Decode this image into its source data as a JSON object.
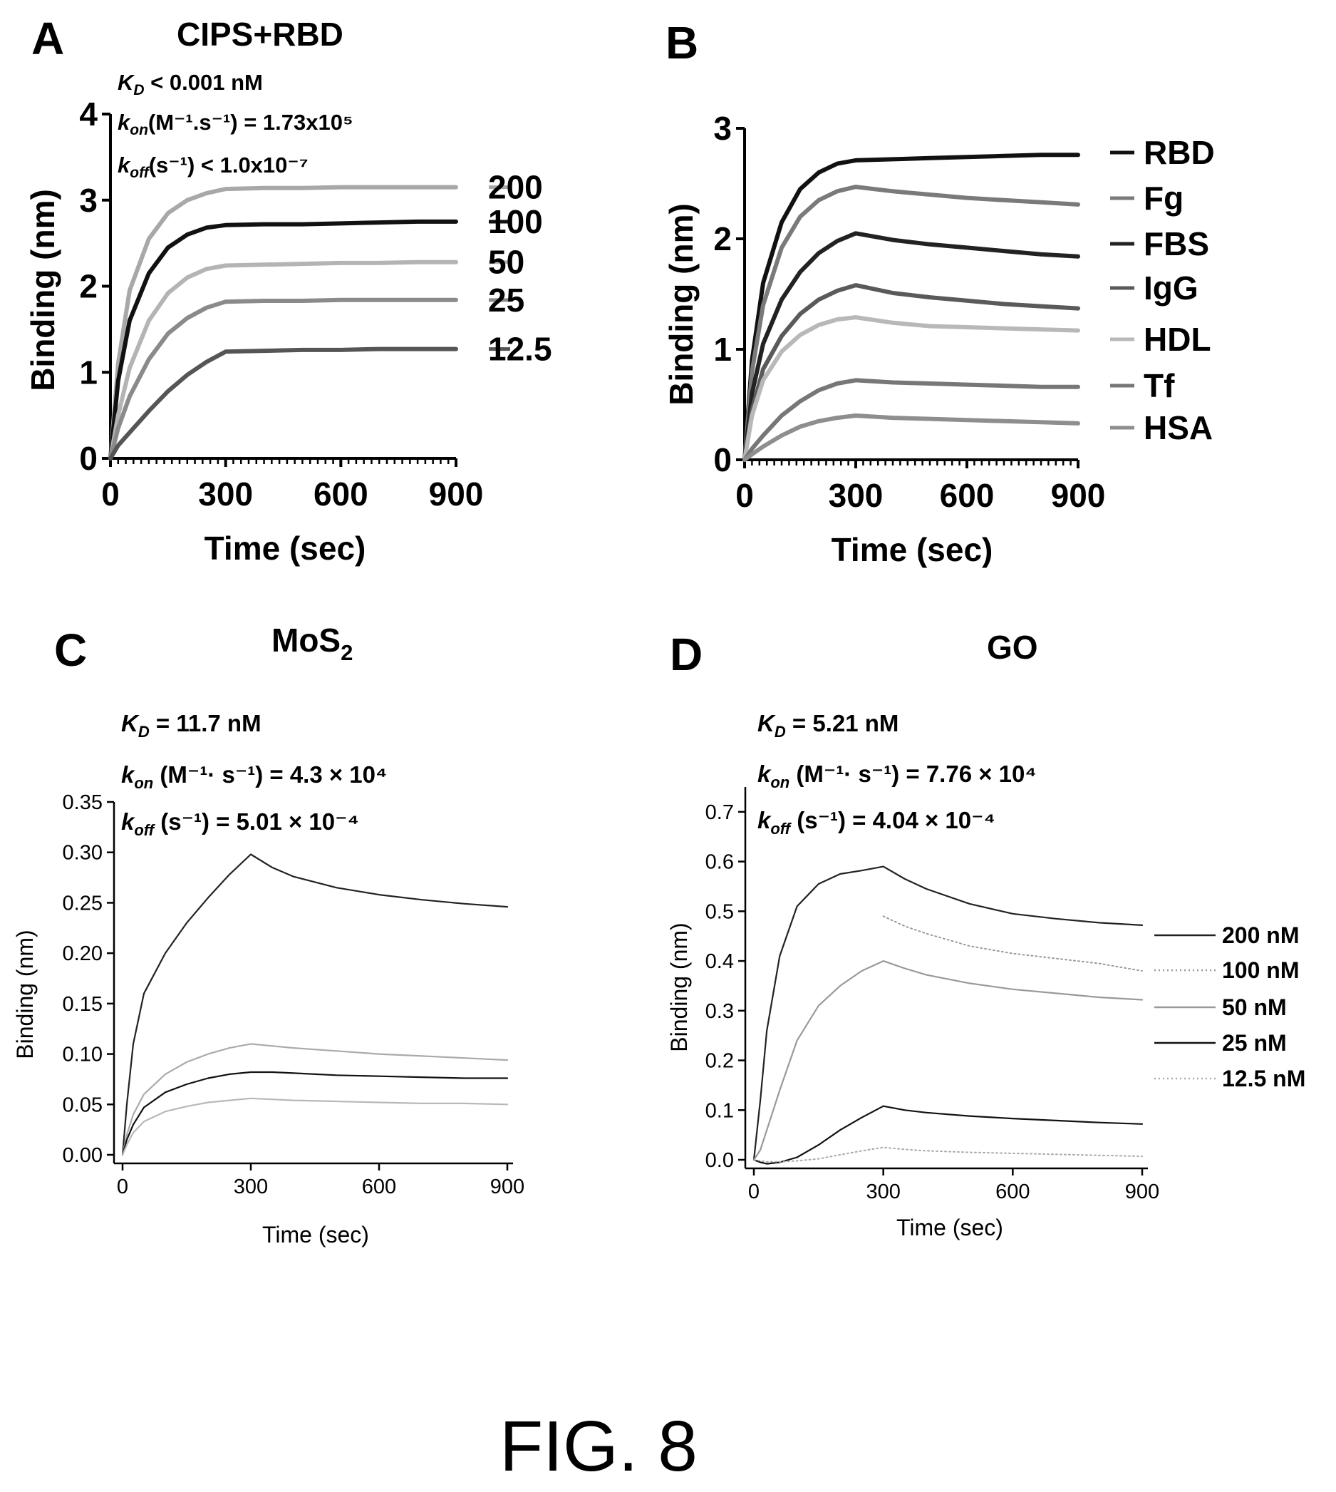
{
  "figure_label": "FIG. 8",
  "chart_data": [
    {
      "panel": "A",
      "type": "line",
      "title": "CIPS+RBD",
      "xlabel": "Time (sec)",
      "ylabel": "Binding (nm)",
      "xlim": [
        0,
        900
      ],
      "ylim": [
        0,
        4
      ],
      "xticks": [
        0,
        300,
        600,
        900
      ],
      "yticks": [
        0,
        1,
        2,
        3,
        4
      ],
      "legend_placement": "right",
      "annotations": {
        "kd": {
          "sym": "K",
          "sub": "D",
          "text": " < 0.001 nM"
        },
        "kon": {
          "sym": "k",
          "sub": "on",
          "text": "(M⁻¹.s⁻¹) = 1.73x10⁵"
        },
        "koff": {
          "sym": "k",
          "sub": "off",
          "text": "(s⁻¹) < 1.0x10⁻⁷"
        }
      },
      "series": [
        {
          "name": "200",
          "color": "#a8a8a8",
          "x": [
            0,
            20,
            50,
            100,
            150,
            200,
            250,
            300,
            400,
            500,
            600,
            700,
            800,
            900
          ],
          "y": [
            0,
            1.1,
            1.95,
            2.55,
            2.85,
            3.0,
            3.08,
            3.13,
            3.14,
            3.14,
            3.15,
            3.15,
            3.15,
            3.15
          ]
        },
        {
          "name": "100",
          "color": "#111111",
          "x": [
            0,
            20,
            50,
            100,
            150,
            200,
            250,
            300,
            400,
            500,
            600,
            700,
            800,
            900
          ],
          "y": [
            0,
            0.9,
            1.6,
            2.15,
            2.45,
            2.6,
            2.68,
            2.71,
            2.72,
            2.72,
            2.73,
            2.74,
            2.75,
            2.75
          ]
        },
        {
          "name": "50",
          "color": "#b4b4b4",
          "x": [
            0,
            20,
            50,
            100,
            150,
            200,
            250,
            300,
            400,
            500,
            600,
            700,
            800,
            900
          ],
          "y": [
            0,
            0.5,
            1.05,
            1.6,
            1.92,
            2.1,
            2.2,
            2.24,
            2.25,
            2.26,
            2.27,
            2.27,
            2.28,
            2.28
          ]
        },
        {
          "name": "25",
          "color": "#8a8a8a",
          "x": [
            0,
            20,
            50,
            100,
            150,
            200,
            250,
            300,
            400,
            500,
            600,
            700,
            800,
            900
          ],
          "y": [
            0,
            0.35,
            0.72,
            1.15,
            1.45,
            1.63,
            1.75,
            1.82,
            1.83,
            1.83,
            1.84,
            1.84,
            1.84,
            1.84
          ]
        },
        {
          "name": "12.5",
          "color": "#555555",
          "x": [
            0,
            20,
            50,
            100,
            150,
            200,
            250,
            300,
            400,
            500,
            600,
            700,
            800,
            900
          ],
          "y": [
            0,
            0.15,
            0.3,
            0.55,
            0.78,
            0.97,
            1.12,
            1.24,
            1.25,
            1.26,
            1.26,
            1.27,
            1.27,
            1.27
          ]
        }
      ]
    },
    {
      "panel": "B",
      "type": "line",
      "title": "",
      "xlabel": "Time (sec)",
      "ylabel": "Binding (nm)",
      "xlim": [
        0,
        900
      ],
      "ylim": [
        0,
        3
      ],
      "xticks": [
        0,
        300,
        600,
        900
      ],
      "yticks": [
        0,
        1,
        2,
        3
      ],
      "legend_placement": "right",
      "series": [
        {
          "name": "RBD",
          "color": "#111111",
          "x": [
            0,
            20,
            50,
            100,
            150,
            200,
            250,
            300,
            400,
            500,
            600,
            700,
            800,
            900
          ],
          "y": [
            0,
            0.9,
            1.6,
            2.15,
            2.45,
            2.6,
            2.68,
            2.71,
            2.72,
            2.73,
            2.74,
            2.75,
            2.76,
            2.76
          ]
        },
        {
          "name": "Fg",
          "color": "#7a7a7a",
          "x": [
            0,
            20,
            50,
            100,
            150,
            200,
            250,
            300,
            400,
            500,
            600,
            700,
            800,
            900
          ],
          "y": [
            0,
            0.8,
            1.4,
            1.92,
            2.2,
            2.35,
            2.43,
            2.47,
            2.43,
            2.4,
            2.37,
            2.35,
            2.33,
            2.31
          ]
        },
        {
          "name": "FBS",
          "color": "#222222",
          "x": [
            0,
            20,
            50,
            100,
            150,
            200,
            250,
            300,
            400,
            500,
            600,
            700,
            800,
            900
          ],
          "y": [
            0,
            0.6,
            1.05,
            1.45,
            1.7,
            1.87,
            1.98,
            2.05,
            1.99,
            1.95,
            1.92,
            1.89,
            1.86,
            1.84
          ]
        },
        {
          "name": "IgG",
          "color": "#5a5a5a",
          "x": [
            0,
            20,
            50,
            100,
            150,
            200,
            250,
            300,
            400,
            500,
            600,
            700,
            800,
            900
          ],
          "y": [
            0,
            0.45,
            0.82,
            1.12,
            1.32,
            1.45,
            1.53,
            1.58,
            1.51,
            1.47,
            1.44,
            1.41,
            1.39,
            1.37
          ]
        },
        {
          "name": "HDL",
          "color": "#b8b8b8",
          "x": [
            0,
            20,
            50,
            100,
            150,
            200,
            250,
            300,
            400,
            500,
            600,
            700,
            800,
            900
          ],
          "y": [
            0,
            0.4,
            0.72,
            0.98,
            1.13,
            1.22,
            1.27,
            1.29,
            1.24,
            1.21,
            1.2,
            1.19,
            1.18,
            1.17
          ]
        },
        {
          "name": "Tf",
          "color": "#777777",
          "x": [
            0,
            20,
            50,
            100,
            150,
            200,
            250,
            300,
            400,
            500,
            600,
            700,
            800,
            900
          ],
          "y": [
            0,
            0.1,
            0.22,
            0.4,
            0.53,
            0.63,
            0.69,
            0.72,
            0.7,
            0.69,
            0.68,
            0.67,
            0.66,
            0.66
          ]
        },
        {
          "name": "HSA",
          "color": "#8e8e8e",
          "x": [
            0,
            20,
            50,
            100,
            150,
            200,
            250,
            300,
            400,
            500,
            600,
            700,
            800,
            900
          ],
          "y": [
            0,
            0.05,
            0.12,
            0.22,
            0.3,
            0.35,
            0.38,
            0.4,
            0.38,
            0.37,
            0.36,
            0.35,
            0.34,
            0.33
          ]
        }
      ]
    },
    {
      "panel": "C",
      "type": "line",
      "title": "MoS",
      "title_sub": "2",
      "xlabel": "Time (sec)",
      "ylabel": "Binding (nm)",
      "xlim": [
        0,
        900
      ],
      "ylim": [
        0,
        0.35
      ],
      "xticks": [
        0,
        300,
        600,
        900
      ],
      "yticks": [
        "0.00",
        "0.05",
        "0.10",
        "0.15",
        "0.20",
        "0.25",
        "0.30",
        "0.35"
      ],
      "annotations": {
        "kd": {
          "sym": "K",
          "sub": "D",
          "text": " = 11.7 nM"
        },
        "kon": {
          "sym": "k",
          "sub": "on",
          "text": " (M⁻¹· s⁻¹) = 4.3 × 10⁴"
        },
        "koff": {
          "sym": "k",
          "sub": "off",
          "text": " (s⁻¹) = 5.01 × 10⁻⁴"
        }
      },
      "series": [
        {
          "color": "#222222",
          "x": [
            0,
            10,
            25,
            50,
            100,
            150,
            200,
            250,
            300,
            350,
            400,
            500,
            600,
            700,
            800,
            900
          ],
          "y": [
            0,
            0.05,
            0.11,
            0.16,
            0.2,
            0.23,
            0.255,
            0.278,
            0.298,
            0.285,
            0.276,
            0.265,
            0.258,
            0.253,
            0.249,
            0.246
          ]
        },
        {
          "color": "#aaaaaa",
          "x": [
            0,
            10,
            25,
            50,
            100,
            150,
            200,
            250,
            300,
            350,
            400,
            500,
            600,
            700,
            800,
            900
          ],
          "y": [
            0,
            0.02,
            0.04,
            0.06,
            0.08,
            0.092,
            0.1,
            0.106,
            0.11,
            0.108,
            0.106,
            0.103,
            0.1,
            0.098,
            0.096,
            0.094
          ]
        },
        {
          "color": "#111111",
          "x": [
            0,
            10,
            25,
            50,
            100,
            150,
            200,
            250,
            300,
            350,
            400,
            500,
            600,
            700,
            800,
            900
          ],
          "y": [
            0,
            0.015,
            0.03,
            0.047,
            0.062,
            0.07,
            0.076,
            0.08,
            0.082,
            0.082,
            0.081,
            0.079,
            0.078,
            0.077,
            0.076,
            0.076
          ]
        },
        {
          "color": "#b8b8b8",
          "x": [
            0,
            10,
            25,
            50,
            100,
            150,
            200,
            250,
            300,
            350,
            400,
            500,
            600,
            700,
            800,
            900
          ],
          "y": [
            0,
            0.01,
            0.022,
            0.033,
            0.043,
            0.048,
            0.052,
            0.054,
            0.056,
            0.055,
            0.054,
            0.053,
            0.052,
            0.051,
            0.051,
            0.05
          ]
        }
      ]
    },
    {
      "panel": "D",
      "type": "line",
      "title": "GO",
      "xlabel": "Time (sec)",
      "ylabel": "Binding (nm)",
      "xlim": [
        0,
        900
      ],
      "ylim": [
        0,
        0.75
      ],
      "xticks": [
        0,
        300,
        600,
        900
      ],
      "yticks": [
        "0.0",
        "0.1",
        "0.2",
        "0.3",
        "0.4",
        "0.5",
        "0.6",
        "0.7"
      ],
      "legend_placement": "right",
      "annotations": {
        "kd": {
          "sym": "K",
          "sub": "D",
          "text": " = 5.21 nM"
        },
        "kon": {
          "sym": "k",
          "sub": "on",
          "text": " (M⁻¹· s⁻¹) = 7.76 × 10⁴"
        },
        "koff": {
          "sym": "k",
          "sub": "off",
          "text": " (s⁻¹) = 4.04 × 10⁻⁴"
        }
      },
      "series": [
        {
          "name": "200 nM",
          "color": "#222222",
          "style": "solid",
          "x": [
            0,
            15,
            30,
            60,
            100,
            150,
            200,
            250,
            300,
            350,
            400,
            500,
            600,
            700,
            800,
            900
          ],
          "y": [
            0,
            0.12,
            0.26,
            0.41,
            0.51,
            0.555,
            0.575,
            0.582,
            0.59,
            0.565,
            0.545,
            0.515,
            0.495,
            0.485,
            0.477,
            0.472
          ]
        },
        {
          "name": "100 nM",
          "color": "#9a9a9a",
          "style": "dotted",
          "x": [
            300,
            350,
            400,
            500,
            600,
            700,
            800,
            900
          ],
          "y": [
            0.49,
            0.47,
            0.455,
            0.43,
            0.415,
            0.405,
            0.395,
            0.38
          ]
        },
        {
          "name": "50 nM",
          "color": "#999999",
          "style": "solid",
          "x": [
            0,
            15,
            30,
            60,
            100,
            150,
            200,
            250,
            300,
            350,
            400,
            500,
            600,
            700,
            800,
            900
          ],
          "y": [
            0,
            0.02,
            0.06,
            0.14,
            0.24,
            0.31,
            0.35,
            0.38,
            0.4,
            0.385,
            0.372,
            0.355,
            0.343,
            0.335,
            0.327,
            0.322
          ]
        },
        {
          "name": "25 nM",
          "color": "#111111",
          "style": "solid",
          "x": [
            0,
            15,
            30,
            60,
            100,
            150,
            200,
            250,
            300,
            350,
            400,
            500,
            600,
            700,
            800,
            900
          ],
          "y": [
            0,
            -0.005,
            -0.008,
            -0.005,
            0.005,
            0.03,
            0.06,
            0.085,
            0.108,
            0.1,
            0.095,
            0.088,
            0.083,
            0.079,
            0.075,
            0.072
          ]
        },
        {
          "name": "12.5 nM",
          "color": "#aaaaaa",
          "style": "dotted",
          "x": [
            0,
            15,
            30,
            60,
            100,
            150,
            200,
            250,
            300,
            350,
            400,
            500,
            600,
            700,
            800,
            900
          ],
          "y": [
            0,
            -0.002,
            -0.004,
            -0.004,
            -0.002,
            0.002,
            0.01,
            0.018,
            0.025,
            0.021,
            0.018,
            0.015,
            0.013,
            0.011,
            0.009,
            0.007
          ]
        }
      ]
    }
  ]
}
